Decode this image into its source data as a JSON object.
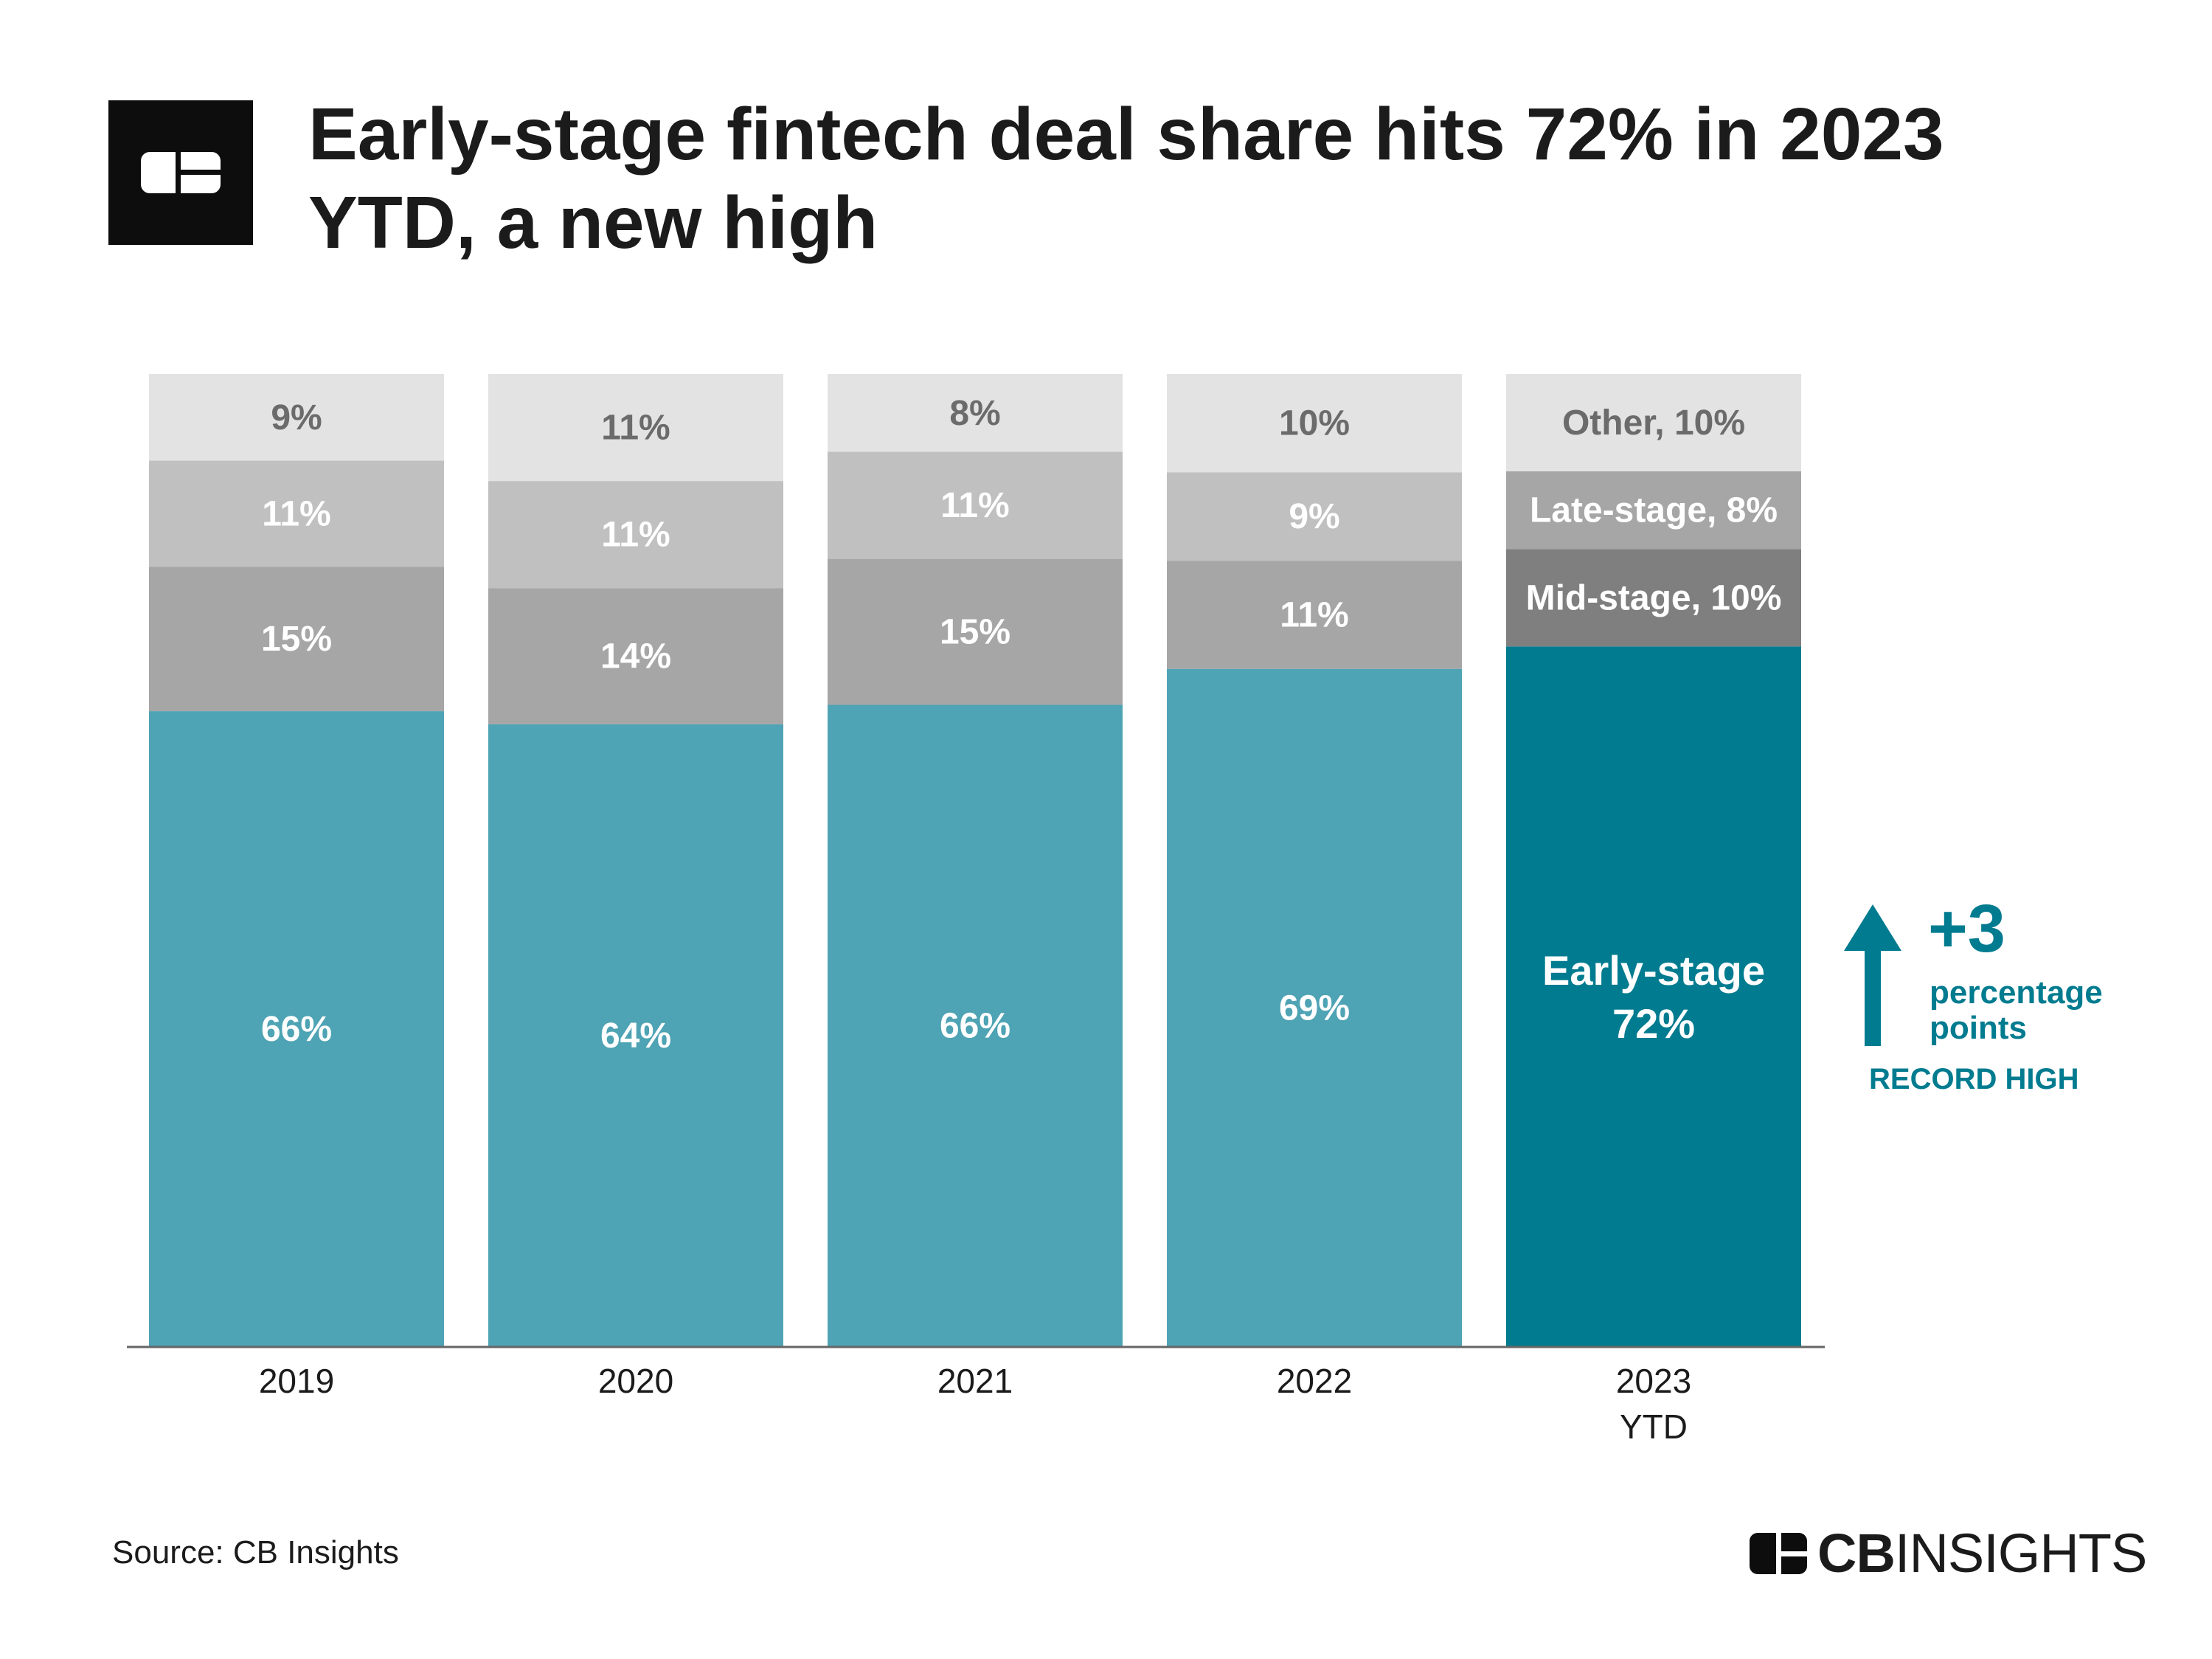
{
  "header": {
    "logo_icon": "cb-insights-logo-icon",
    "title": "Early-stage fintech deal share hits 72% in 2023 YTD, a new high"
  },
  "chart_data": {
    "type": "bar",
    "stacked": true,
    "percent_stacked": true,
    "title": "Early-stage fintech deal share hits 72% in 2023 YTD, a new high",
    "categories": [
      [
        "2019"
      ],
      [
        "2020"
      ],
      [
        "2021"
      ],
      [
        "2022"
      ],
      [
        "2023",
        "YTD"
      ]
    ],
    "series": [
      {
        "name": "Early-stage",
        "values": [
          66,
          64,
          66,
          69,
          72
        ],
        "color": "#4ea3b4",
        "highlight_color": "#007b8f"
      },
      {
        "name": "Mid-stage",
        "values": [
          15,
          14,
          15,
          11,
          10
        ],
        "color": "#a6a6a6",
        "highlight_color": "#7f7f7f"
      },
      {
        "name": "Late-stage",
        "values": [
          11,
          11,
          11,
          9,
          8
        ],
        "color": "#c0c0c0",
        "highlight_color": "#a6a6a6"
      },
      {
        "name": "Other",
        "values": [
          9,
          11,
          8,
          10,
          10
        ],
        "color": "#e3e3e3",
        "highlight_color": "#e3e3e3"
      }
    ],
    "segment_labels": [
      [
        "66%",
        "64%",
        "66%",
        "69%",
        "Early-stage\n72%"
      ],
      [
        "15%",
        "14%",
        "15%",
        "11%",
        "Mid-stage, 10%"
      ],
      [
        "11%",
        "11%",
        "11%",
        "9%",
        "Late-stage, 8%"
      ],
      [
        "9%",
        "11%",
        "8%",
        "10%",
        "Other, 10%"
      ]
    ],
    "highlight_category_index": 4,
    "ylim": [
      0,
      100
    ],
    "grid": false,
    "annotation": {
      "value": "+3",
      "unit_lines": [
        "percentage",
        "points"
      ],
      "note": "RECORD HIGH",
      "icon": "arrow-up-icon",
      "color": "#007b8f"
    }
  },
  "footer": {
    "source": "Source: CB Insights",
    "brand_bold": "CB",
    "brand_rest": "INSIGHTS",
    "brand_icon": "cb-insights-logo-icon"
  }
}
